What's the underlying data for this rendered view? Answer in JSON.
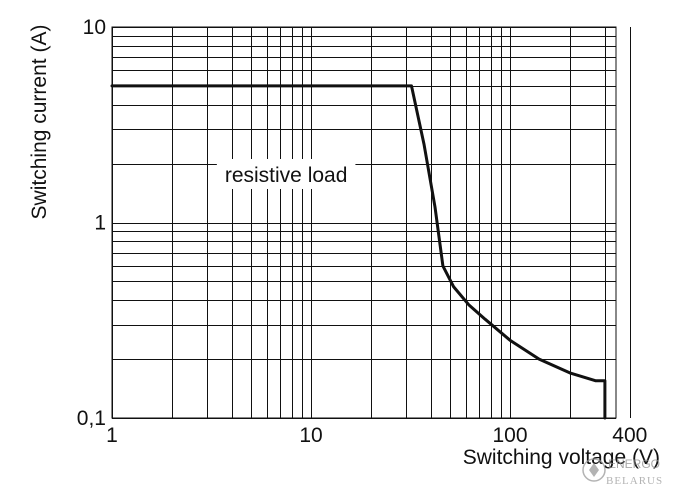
{
  "chart_data": {
    "type": "line",
    "title": "",
    "xlabel": "Switching voltage (V)",
    "ylabel": "Switching current (A)",
    "x_scale": "log",
    "y_scale": "log",
    "xlim": [
      1,
      400
    ],
    "ylim": [
      0.1,
      10
    ],
    "grid": true,
    "x_tick_labels": [
      {
        "value": 1,
        "label": "1"
      },
      {
        "value": 10,
        "label": "10"
      },
      {
        "value": 100,
        "label": "100"
      },
      {
        "value": 400,
        "label": "400"
      }
    ],
    "y_tick_labels": [
      {
        "value": 10,
        "label": "10"
      },
      {
        "value": 1,
        "label": "1"
      },
      {
        "value": 0.1,
        "label": "0,1"
      }
    ],
    "series": [
      {
        "name": "resistive load",
        "points": [
          {
            "x": 1,
            "y": 5.0
          },
          {
            "x": 32,
            "y": 5.0
          },
          {
            "x": 37,
            "y": 2.5
          },
          {
            "x": 42,
            "y": 1.2
          },
          {
            "x": 46,
            "y": 0.6
          },
          {
            "x": 52,
            "y": 0.47
          },
          {
            "x": 62,
            "y": 0.38
          },
          {
            "x": 75,
            "y": 0.32
          },
          {
            "x": 100,
            "y": 0.25
          },
          {
            "x": 140,
            "y": 0.2
          },
          {
            "x": 200,
            "y": 0.17
          },
          {
            "x": 270,
            "y": 0.155
          },
          {
            "x": 300,
            "y": 0.155
          },
          {
            "x": 300,
            "y": 0.1
          }
        ]
      }
    ],
    "annotations": [
      {
        "text": "resistive load",
        "x": 7.5,
        "y": 1.75
      }
    ]
  },
  "watermark": {
    "brand_top": "ENERGO",
    "brand_bottom": "BELARUS"
  }
}
